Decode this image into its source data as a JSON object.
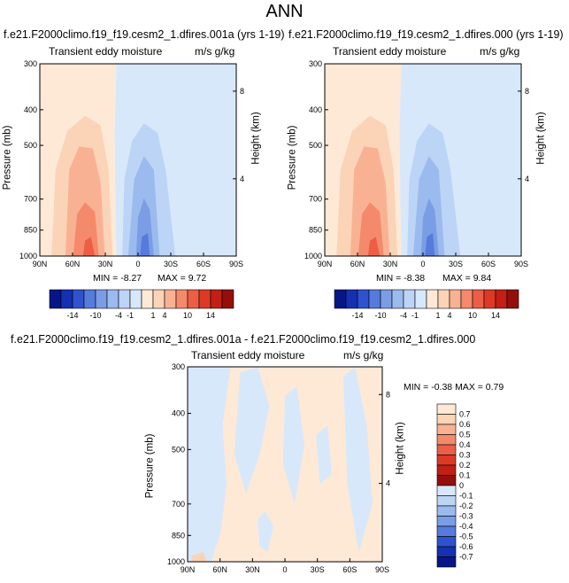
{
  "title": "ANN",
  "colors": {
    "pos": [
      "#fde9d6",
      "#fbd3b7",
      "#f9b194",
      "#f48a6b",
      "#ec5e45",
      "#dd3a26",
      "#c21f16",
      "#940f0b"
    ],
    "neg": [
      "#d8e8fb",
      "#bcd4f6",
      "#9bbaee",
      "#7a9de5",
      "#557bdc",
      "#2f52cf",
      "#1531b3",
      "#071687"
    ]
  },
  "chart_data": [
    {
      "type": "heatmap",
      "title": "f.e21.F2000climo.f19_f19.cesm2_1.dfires.001a (yrs 1-19)",
      "subtitle_left": "Transient eddy moisture",
      "subtitle_right": "m/s g/kg",
      "ylabel": "Pressure (mb)",
      "ylabel_right": "Height (km)",
      "x_ticks": [
        "90N",
        "60N",
        "30N",
        "0",
        "30S",
        "60S",
        "90S"
      ],
      "y_ticks": [
        "300",
        "400",
        "500",
        "700",
        "850",
        "1000"
      ],
      "right_ticks": [
        "8",
        "4"
      ],
      "min_label": "MIN = -8.27",
      "max_label": "MAX =  9.72",
      "min": -8.27,
      "max": 9.72,
      "colorbar_labels": [
        "-14",
        "-10",
        "-4",
        "-1",
        "1",
        "4",
        "10",
        "14"
      ]
    },
    {
      "type": "heatmap",
      "title": "f.e21.F2000climo.f19_f19.cesm2_1.dfires.000 (yrs 1-19)",
      "subtitle_left": "Transient eddy moisture",
      "subtitle_right": "m/s g/kg",
      "ylabel": "Pressure (mb)",
      "ylabel_right": "Height (km)",
      "x_ticks": [
        "90N",
        "60N",
        "30N",
        "0",
        "30S",
        "60S",
        "90S"
      ],
      "y_ticks": [
        "300",
        "400",
        "500",
        "700",
        "850",
        "1000"
      ],
      "right_ticks": [
        "8",
        "4"
      ],
      "min_label": "MIN = -8.38",
      "max_label": "MAX =  9.84",
      "min": -8.38,
      "max": 9.84,
      "colorbar_labels": [
        "-14",
        "-10",
        "-4",
        "-1",
        "1",
        "4",
        "10",
        "14"
      ]
    },
    {
      "type": "heatmap",
      "title": "f.e21.F2000climo.f19_f19.cesm2_1.dfires.001a - f.e21.F2000climo.f19_f19.cesm2_1.dfires.000",
      "subtitle_left": "Transient eddy moisture",
      "subtitle_right": "m/s g/kg",
      "ylabel": "Pressure (mb)",
      "ylabel_right": "Height (km)",
      "x_ticks": [
        "90N",
        "60N",
        "30N",
        "0",
        "30S",
        "60S",
        "90S"
      ],
      "y_ticks": [
        "300",
        "400",
        "500",
        "700",
        "850",
        "1000"
      ],
      "right_ticks": [
        "8",
        "4"
      ],
      "minmax_label": "MIN = -0.38   MAX =  0.79",
      "min": -0.38,
      "max": 0.79,
      "colorbar_labels": [
        "0.7",
        "0.6",
        "0.5",
        "0.4",
        "0.3",
        "0.2",
        "0.1",
        "0",
        "-0.1",
        "-0.2",
        "-0.3",
        "-0.4",
        "-0.5",
        "-0.6",
        "-0.7"
      ]
    }
  ]
}
